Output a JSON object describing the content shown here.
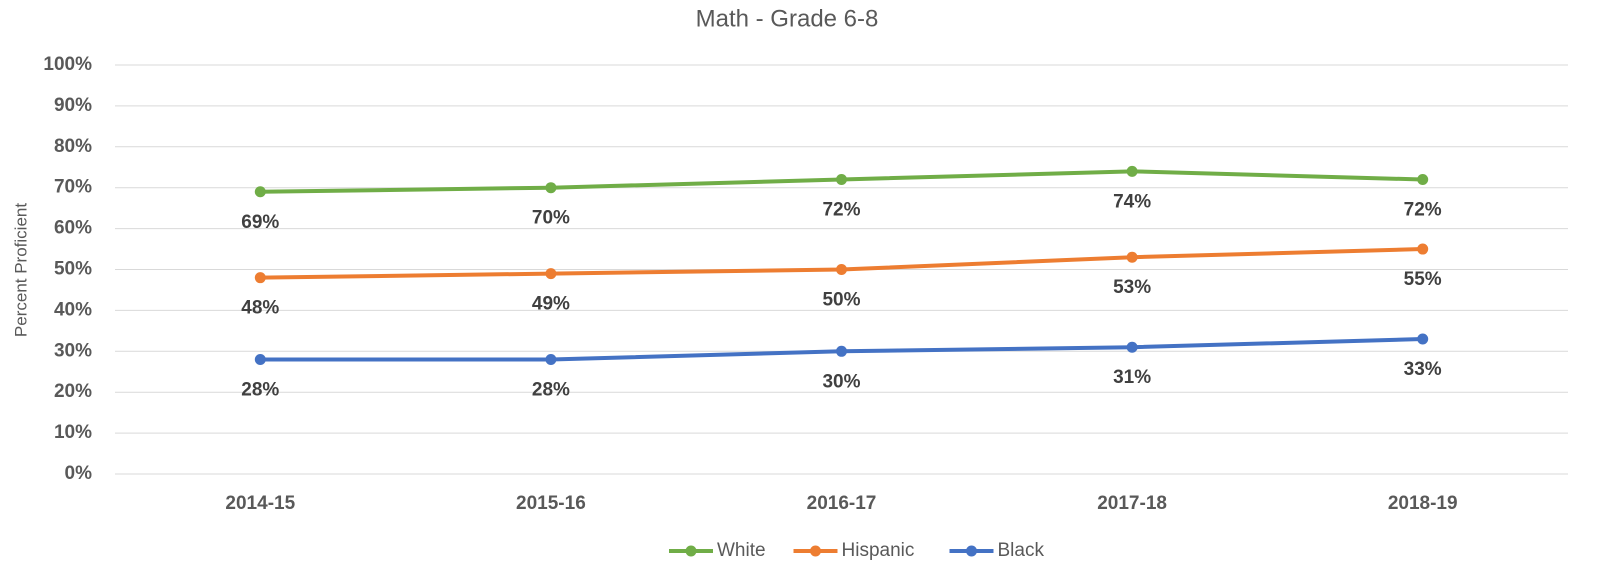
{
  "chart_data": {
    "type": "line",
    "title": "Math - Grade 6-8",
    "ylabel": "Percent Proficient",
    "categories": [
      "2014-15",
      "2015-16",
      "2016-17",
      "2017-18",
      "2018-19"
    ],
    "series": [
      {
        "name": "White",
        "color": "#70ad47",
        "values": [
          69,
          70,
          72,
          74,
          72
        ],
        "value_labels": [
          "69%",
          "70%",
          "72%",
          "74%",
          "72%"
        ]
      },
      {
        "name": "Hispanic",
        "color": "#ed7d31",
        "values": [
          48,
          49,
          50,
          53,
          55
        ],
        "value_labels": [
          "48%",
          "49%",
          "50%",
          "53%",
          "55%"
        ]
      },
      {
        "name": "Black",
        "color": "#4472c4",
        "values": [
          28,
          28,
          30,
          31,
          33
        ],
        "value_labels": [
          "28%",
          "28%",
          "30%",
          "31%",
          "33%"
        ]
      }
    ],
    "ylim": [
      0,
      100
    ],
    "yticks": [
      {
        "value": 0,
        "label": "0%"
      },
      {
        "value": 10,
        "label": "10%"
      },
      {
        "value": 20,
        "label": "20%"
      },
      {
        "value": 30,
        "label": "30%"
      },
      {
        "value": 40,
        "label": "40%"
      },
      {
        "value": 50,
        "label": "50%"
      },
      {
        "value": 60,
        "label": "60%"
      },
      {
        "value": 70,
        "label": "70%"
      },
      {
        "value": 80,
        "label": "80%"
      },
      {
        "value": 90,
        "label": "90%"
      },
      {
        "value": 100,
        "label": "100%"
      }
    ],
    "grid": true,
    "legend": "bottom"
  }
}
